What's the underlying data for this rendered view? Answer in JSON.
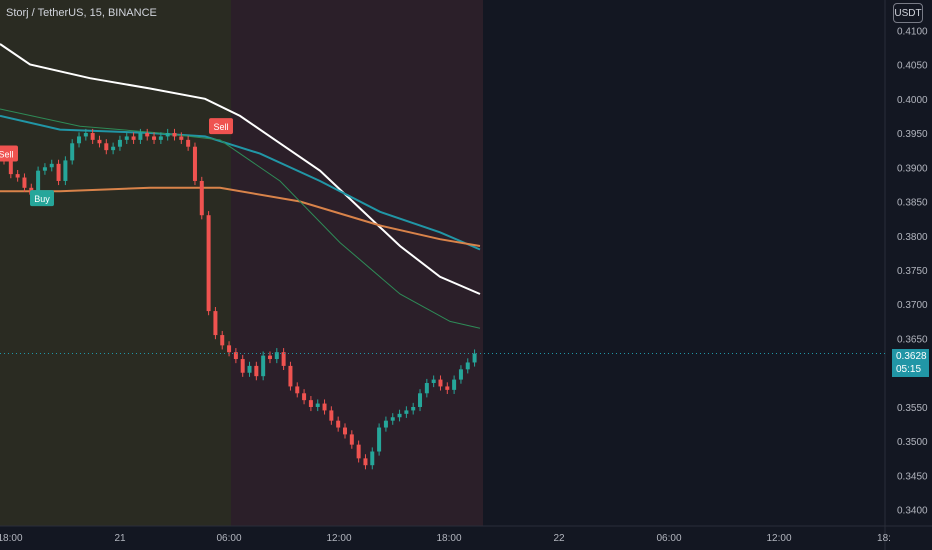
{
  "symbol": {
    "name": "Storj / TetherUS",
    "interval": "15",
    "exchange": "BINANCE"
  },
  "currency_button": "USDT",
  "last_price": {
    "value": "0.3628",
    "countdown": "05:15"
  },
  "colors": {
    "background": "#131722",
    "session_bg_1": "#2a2b22",
    "session_bg_2": "#2b1f29",
    "up": "#26a69a",
    "down": "#ef5350",
    "ma_white": "#ffffff",
    "ma_blue": "#2196a6",
    "ma_orange": "#d9834a",
    "ma_green": "#2e8b57",
    "price_line": "#2196a6"
  },
  "chart_data": {
    "type": "candlestick",
    "title": "Storj / TetherUS, 15, BINANCE",
    "y_axis": {
      "ticks": [
        "0.4100",
        "0.4050",
        "0.4000",
        "0.3950",
        "0.3900",
        "0.3850",
        "0.3800",
        "0.3750",
        "0.3700",
        "0.3650",
        "0.3550",
        "0.3500",
        "0.3450",
        "0.3400"
      ],
      "range": [
        0.3385,
        0.4115
      ]
    },
    "x_axis": {
      "ticks": [
        "18:00",
        "21",
        "06:00",
        "12:00",
        "18:00",
        "22",
        "06:00",
        "12:00",
        "18:"
      ]
    },
    "last_price": 0.3628,
    "series": [
      {
        "name": "price",
        "kind": "candles",
        "close": [
          0.391,
          0.389,
          0.3885,
          0.387,
          0.386,
          0.3895,
          0.39,
          0.3905,
          0.388,
          0.391,
          0.3935,
          0.3945,
          0.395,
          0.394,
          0.3935,
          0.3925,
          0.393,
          0.394,
          0.3945,
          0.394,
          0.395,
          0.3945,
          0.394,
          0.3945,
          0.395,
          0.3945,
          0.394,
          0.393,
          0.388,
          0.383,
          0.369,
          0.3655,
          0.364,
          0.363,
          0.362,
          0.36,
          0.361,
          0.3595,
          0.3625,
          0.362,
          0.363,
          0.361,
          0.358,
          0.357,
          0.356,
          0.355,
          0.3555,
          0.3545,
          0.353,
          0.352,
          0.351,
          0.3495,
          0.3475,
          0.3465,
          0.3485,
          0.352,
          0.353,
          0.3535,
          0.354,
          0.3545,
          0.355,
          0.357,
          0.3585,
          0.359,
          0.358,
          0.3575,
          0.359,
          0.3605,
          0.3615,
          0.3628
        ]
      },
      {
        "name": "MA white",
        "kind": "line",
        "values": [
          [
            0,
            0.408
          ],
          [
            30,
            0.405
          ],
          [
            90,
            0.403
          ],
          [
            150,
            0.4015
          ],
          [
            205,
            0.4
          ],
          [
            240,
            0.3975
          ],
          [
            280,
            0.3935
          ],
          [
            320,
            0.3895
          ],
          [
            360,
            0.384
          ],
          [
            400,
            0.3785
          ],
          [
            440,
            0.374
          ],
          [
            480,
            0.3715
          ]
        ]
      },
      {
        "name": "MA blue",
        "kind": "line",
        "values": [
          [
            0,
            0.3975
          ],
          [
            60,
            0.3955
          ],
          [
            150,
            0.395
          ],
          [
            205,
            0.3945
          ],
          [
            260,
            0.392
          ],
          [
            320,
            0.388
          ],
          [
            380,
            0.3835
          ],
          [
            440,
            0.3805
          ],
          [
            480,
            0.378
          ]
        ]
      },
      {
        "name": "MA orange",
        "kind": "line",
        "values": [
          [
            0,
            0.3865
          ],
          [
            60,
            0.3865
          ],
          [
            150,
            0.387
          ],
          [
            220,
            0.387
          ],
          [
            300,
            0.385
          ],
          [
            380,
            0.3815
          ],
          [
            440,
            0.3795
          ],
          [
            480,
            0.3785
          ]
        ]
      },
      {
        "name": "MA green",
        "kind": "line",
        "values": [
          [
            0,
            0.3985
          ],
          [
            80,
            0.396
          ],
          [
            160,
            0.395
          ],
          [
            220,
            0.394
          ],
          [
            280,
            0.388
          ],
          [
            340,
            0.379
          ],
          [
            400,
            0.3715
          ],
          [
            450,
            0.3675
          ],
          [
            480,
            0.3665
          ]
        ]
      }
    ],
    "markers": [
      {
        "label": "Sell",
        "at": 0,
        "price": 0.392
      },
      {
        "label": "Buy",
        "at": 20,
        "price": 0.3855
      },
      {
        "label": "Sell",
        "at": 215,
        "price": 0.396
      }
    ],
    "grid": false
  }
}
